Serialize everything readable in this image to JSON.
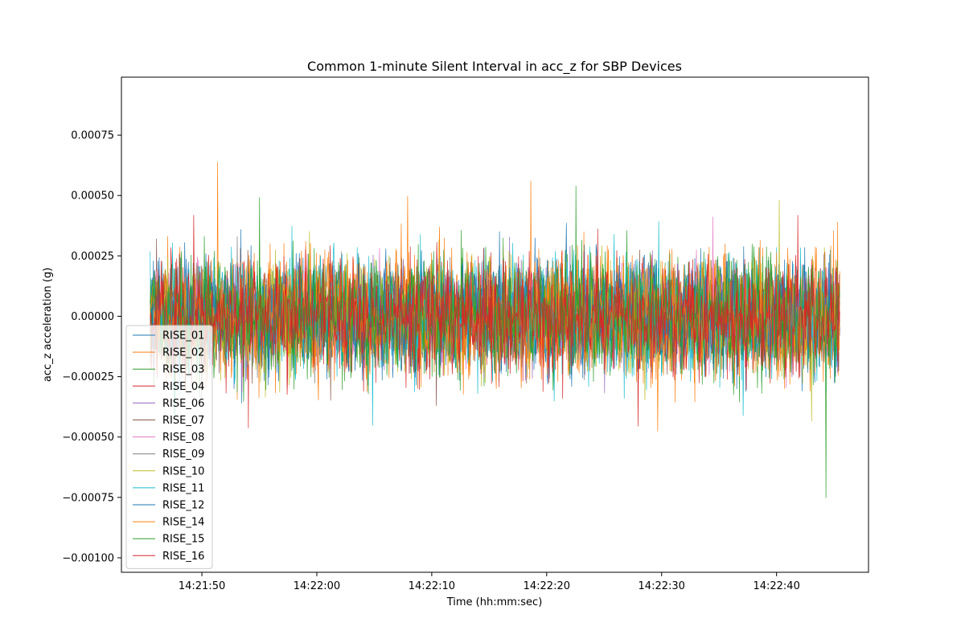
{
  "chart_data": {
    "type": "line",
    "title": "Common 1-minute Silent Interval in acc_z for SBP Devices",
    "xlabel": "Time (hh:mm:sec)",
    "ylabel": "acc_z acceleration (g)",
    "x_range": [
      "14:21:45.5",
      "14:22:45.5"
    ],
    "xlim": [
      "14:21:43",
      "14:22:48"
    ],
    "ylim": [
      -0.00106,
      0.00099
    ],
    "x_ticks": [
      "14:21:50",
      "14:22:00",
      "14:22:10",
      "14:22:20",
      "14:22:30",
      "14:22:40"
    ],
    "y_ticks": [
      0.00075,
      0.0005,
      0.00025,
      0.0,
      -0.00025,
      -0.0005,
      -0.00075,
      -0.001
    ],
    "y_tick_labels": [
      "0.00075",
      "0.00050",
      "0.00025",
      "0.00000",
      "−0.00025",
      "−0.00050",
      "−0.00075",
      "−0.00100"
    ],
    "grid": false,
    "legend_position": "lower-left",
    "series": [
      {
        "name": "RISE_01",
        "color": "#1f77b4",
        "amplitude": 0.00045
      },
      {
        "name": "RISE_02",
        "color": "#ff7f0e",
        "amplitude": 0.0005
      },
      {
        "name": "RISE_03",
        "color": "#2ca02c",
        "amplitude": 0.00045
      },
      {
        "name": "RISE_04",
        "color": "#d62728",
        "amplitude": 0.0004
      },
      {
        "name": "RISE_06",
        "color": "#9467bd",
        "amplitude": 0.0004
      },
      {
        "name": "RISE_07",
        "color": "#8c564b",
        "amplitude": 0.00035
      },
      {
        "name": "RISE_08",
        "color": "#e377c2",
        "amplitude": 0.0004
      },
      {
        "name": "RISE_09",
        "color": "#7f7f7f",
        "amplitude": 0.0004
      },
      {
        "name": "RISE_10",
        "color": "#bcbd22",
        "amplitude": 0.00045
      },
      {
        "name": "RISE_11",
        "color": "#17becf",
        "amplitude": 0.0005
      },
      {
        "name": "RISE_12",
        "color": "#1f77b4",
        "amplitude": 0.00045
      },
      {
        "name": "RISE_14",
        "color": "#ff7f0e",
        "amplitude": 0.0005
      },
      {
        "name": "RISE_15",
        "color": "#2ca02c",
        "amplitude": 0.0005
      },
      {
        "name": "RISE_16",
        "color": "#d62728",
        "amplitude": 0.00045
      }
    ],
    "notes": "Dense noise signals centered near 0 g; per-series peak amplitudes approximate."
  }
}
